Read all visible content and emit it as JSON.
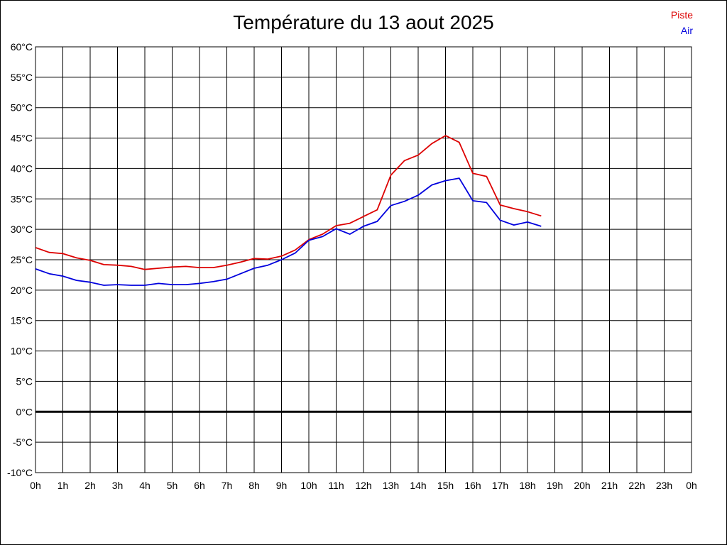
{
  "chart_data": {
    "type": "line",
    "title": "Température du 13 aout 2025",
    "ylim": [
      -10,
      60
    ],
    "y_ticks": [
      "60°C",
      "55°C",
      "50°C",
      "45°C",
      "40°C",
      "35°C",
      "30°C",
      "25°C",
      "20°C",
      "15°C",
      "10°C",
      "5°C",
      "0°C",
      "-5°C",
      "-10°C"
    ],
    "x_ticks": [
      "0h",
      "1h",
      "2h",
      "3h",
      "4h",
      "5h",
      "6h",
      "7h",
      "8h",
      "9h",
      "10h",
      "11h",
      "12h",
      "13h",
      "14h",
      "15h",
      "16h",
      "17h",
      "18h",
      "19h",
      "20h",
      "21h",
      "22h",
      "23h",
      "0h"
    ],
    "grid": true,
    "legend_position": "top-right",
    "series": [
      {
        "name": "Piste",
        "color": "#dd0000",
        "x": [
          0,
          0.5,
          1,
          1.5,
          2,
          2.5,
          3,
          3.5,
          4,
          4.5,
          5,
          5.5,
          6,
          6.5,
          7,
          7.5,
          8,
          8.5,
          9,
          9.5,
          10,
          10.5,
          11,
          11.5,
          12,
          12.5,
          13,
          13.5,
          14,
          14.5,
          15,
          15.5,
          16,
          16.5,
          17,
          17.5,
          18,
          18.5
        ],
        "values": [
          27.0,
          26.2,
          26.0,
          25.3,
          24.9,
          24.2,
          24.1,
          23.9,
          23.4,
          23.6,
          23.8,
          23.9,
          23.7,
          23.7,
          24.1,
          24.6,
          25.2,
          25.1,
          25.6,
          26.6,
          28.3,
          29.2,
          30.6,
          31.0,
          32.1,
          33.2,
          38.9,
          41.3,
          42.2,
          44.1,
          45.4,
          44.3,
          39.2,
          38.7,
          34.0,
          33.4,
          32.9,
          32.2
        ]
      },
      {
        "name": "Air",
        "color": "#0000dd",
        "x": [
          0,
          0.5,
          1,
          1.5,
          2,
          2.5,
          3,
          3.5,
          4,
          4.5,
          5,
          5.5,
          6,
          6.5,
          7,
          7.5,
          8,
          8.5,
          9,
          9.5,
          10,
          10.5,
          11,
          11.5,
          12,
          12.5,
          13,
          13.5,
          14,
          14.5,
          15,
          15.5,
          16,
          16.5,
          17,
          17.5,
          18,
          18.5
        ],
        "values": [
          23.5,
          22.7,
          22.3,
          21.6,
          21.3,
          20.8,
          20.9,
          20.8,
          20.8,
          21.1,
          20.9,
          20.9,
          21.1,
          21.4,
          21.8,
          22.7,
          23.6,
          24.1,
          25.0,
          26.1,
          28.2,
          28.8,
          30.1,
          29.2,
          30.5,
          31.3,
          33.9,
          34.6,
          35.6,
          37.3,
          38.0,
          38.4,
          34.7,
          34.4,
          31.5,
          30.7,
          31.2,
          30.5
        ]
      }
    ]
  }
}
